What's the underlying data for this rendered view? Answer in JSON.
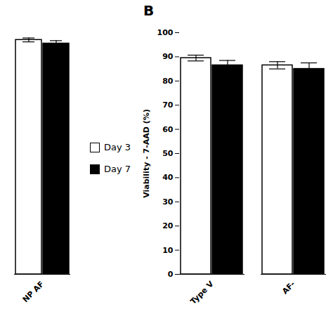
{
  "chart_data": [
    {
      "type": "bar",
      "categories": [
        "NP AF"
      ],
      "series": [
        {
          "name": "Day 3",
          "color": "white",
          "values": [
            97.0
          ],
          "errors": [
            0.8
          ]
        },
        {
          "name": "Day 7",
          "color": "black",
          "values": [
            95.5
          ],
          "errors": [
            1.2
          ]
        }
      ],
      "ylim": [
        0,
        100
      ],
      "tick_labels": "x",
      "grid": false
    },
    {
      "type": "bar",
      "title": "B",
      "y_label": "Viability - 7-AAD (%)",
      "categories": [
        "Type V",
        "AF-"
      ],
      "series": [
        {
          "name": "Day 3",
          "color": "white",
          "values": [
            89.5,
            86.5
          ],
          "errors": [
            1.2,
            1.5
          ]
        },
        {
          "name": "Day 7",
          "color": "black",
          "values": [
            86.5,
            85.0
          ],
          "errors": [
            2.0,
            2.5
          ]
        }
      ],
      "ylim": [
        0,
        100
      ],
      "yticks": [
        0,
        10,
        20,
        30,
        40,
        50,
        60,
        70,
        80,
        90,
        100
      ],
      "grid": false
    }
  ]
}
